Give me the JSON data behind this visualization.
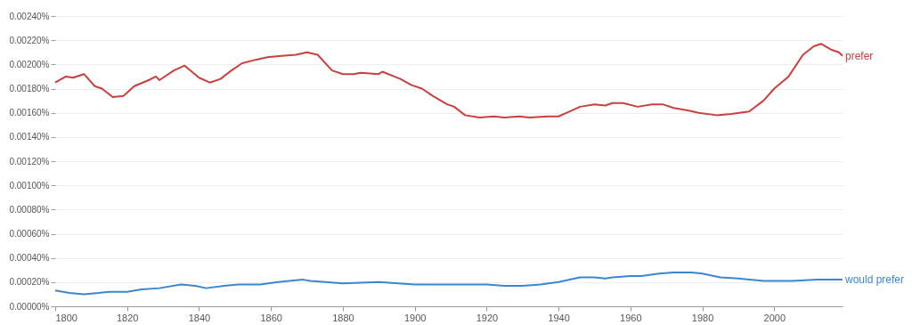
{
  "chart_data": {
    "type": "line",
    "xlim": [
      1800,
      2019
    ],
    "xticks": [
      1800,
      1820,
      1840,
      1860,
      1880,
      1900,
      1920,
      1940,
      1960,
      1980,
      2000
    ],
    "ylim": [
      0,
      0.0024
    ],
    "yticks": [
      {
        "value": 0,
        "label": "0.00000%"
      },
      {
        "value": 0.0002,
        "label": "0.00020%"
      },
      {
        "value": 0.0004,
        "label": "0.00040%"
      },
      {
        "value": 0.0006,
        "label": "0.00060%"
      },
      {
        "value": 0.0008,
        "label": "0.00080%"
      },
      {
        "value": 0.001,
        "label": "0.00100%"
      },
      {
        "value": 0.0012,
        "label": "0.00120%"
      },
      {
        "value": 0.0014,
        "label": "0.00140%"
      },
      {
        "value": 0.0016,
        "label": "0.00160%"
      },
      {
        "value": 0.0018,
        "label": "0.00180%"
      },
      {
        "value": 0.002,
        "label": "0.00200%"
      },
      {
        "value": 0.0022,
        "label": "0.00220%"
      },
      {
        "value": 0.0024,
        "label": "0.00240%"
      }
    ],
    "grid": "y",
    "line_style": "solid",
    "marker": "none",
    "series": [
      {
        "name": "prefer",
        "color": "#c9403f",
        "x": [
          1800,
          1803,
          1805,
          1808,
          1811,
          1813,
          1816,
          1819,
          1822,
          1826,
          1828,
          1829,
          1833,
          1836,
          1840,
          1843,
          1846,
          1849,
          1852,
          1856,
          1859,
          1863,
          1867,
          1870,
          1873,
          1877,
          1880,
          1883,
          1885,
          1890,
          1891,
          1896,
          1899,
          1902,
          1905,
          1909,
          1911,
          1914,
          1918,
          1922,
          1925,
          1929,
          1932,
          1937,
          1940,
          1943,
          1946,
          1950,
          1953,
          1955,
          1958,
          1962,
          1966,
          1969,
          1972,
          1976,
          1979,
          1984,
          1988,
          1993,
          1997,
          2000,
          2004,
          2008,
          2011,
          2013,
          2016,
          2018,
          2019
        ],
        "values": [
          0.00185,
          0.0019,
          0.00189,
          0.00192,
          0.00182,
          0.0018,
          0.00173,
          0.00174,
          0.00182,
          0.00187,
          0.0019,
          0.00187,
          0.00195,
          0.00199,
          0.00189,
          0.00185,
          0.00188,
          0.00195,
          0.00201,
          0.00204,
          0.00206,
          0.00207,
          0.00208,
          0.0021,
          0.00208,
          0.00195,
          0.00192,
          0.00192,
          0.00193,
          0.00192,
          0.00194,
          0.00188,
          0.00183,
          0.0018,
          0.00174,
          0.00167,
          0.00165,
          0.00158,
          0.00156,
          0.00157,
          0.00156,
          0.00157,
          0.00156,
          0.00157,
          0.00157,
          0.00161,
          0.00165,
          0.00167,
          0.00166,
          0.00168,
          0.00168,
          0.00165,
          0.00167,
          0.00167,
          0.00164,
          0.00162,
          0.0016,
          0.00158,
          0.00159,
          0.00161,
          0.0017,
          0.0018,
          0.0019,
          0.00208,
          0.00215,
          0.00217,
          0.00212,
          0.0021,
          0.00207
        ]
      },
      {
        "name": "would prefer",
        "color": "#3b86d0",
        "x": [
          1800,
          1804,
          1808,
          1812,
          1815,
          1820,
          1824,
          1829,
          1835,
          1839,
          1842,
          1847,
          1851,
          1857,
          1862,
          1865,
          1869,
          1871,
          1880,
          1890,
          1900,
          1910,
          1915,
          1920,
          1925,
          1930,
          1935,
          1940,
          1946,
          1950,
          1953,
          1955,
          1960,
          1963,
          1968,
          1972,
          1977,
          1980,
          1985,
          1990,
          1997,
          2005,
          2012,
          2019
        ],
        "values": [
          0.00013,
          0.00011,
          0.0001,
          0.00011,
          0.00012,
          0.00012,
          0.00014,
          0.00015,
          0.00018,
          0.00017,
          0.00015,
          0.00017,
          0.00018,
          0.00018,
          0.0002,
          0.00021,
          0.00022,
          0.00021,
          0.00019,
          0.0002,
          0.00018,
          0.00018,
          0.00018,
          0.00018,
          0.00017,
          0.00017,
          0.00018,
          0.0002,
          0.00024,
          0.00024,
          0.00023,
          0.00024,
          0.00025,
          0.00025,
          0.00027,
          0.00028,
          0.00028,
          0.00027,
          0.00024,
          0.00023,
          0.00021,
          0.00021,
          0.00022,
          0.00022
        ]
      }
    ]
  }
}
